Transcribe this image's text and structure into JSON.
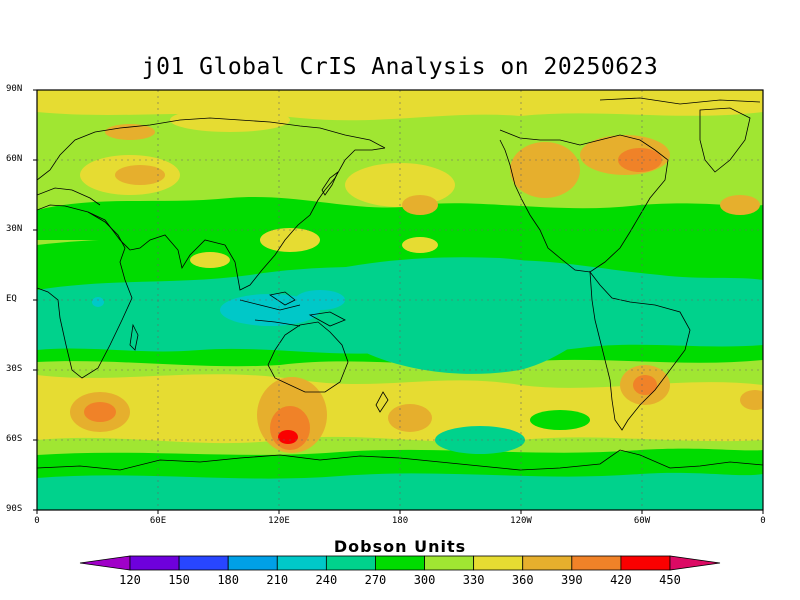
{
  "title": "j01 Global CrIS Analysis on 20250623",
  "lat_labels": [
    "90N",
    "60N",
    "30N",
    "EQ",
    "30S",
    "60S",
    "90S"
  ],
  "lon_labels": [
    "0",
    "60E",
    "120E",
    "180",
    "120W",
    "60W",
    "0"
  ],
  "colorbar": {
    "title": "Dobson Units",
    "levels": [
      "120",
      "150",
      "180",
      "210",
      "240",
      "270",
      "300",
      "330",
      "360",
      "390",
      "420",
      "450"
    ],
    "colors": [
      "#a000c8",
      "#6e00dc",
      "#2846ff",
      "#00a0e6",
      "#00c8c8",
      "#00d28c",
      "#00dc00",
      "#a0e632",
      "#e6dc32",
      "#e6af2d",
      "#f08228",
      "#fa0000",
      "#dc0a64"
    ]
  },
  "map": {
    "projection": "cylindrical equidistant",
    "lon_range": [
      0,
      360
    ],
    "lat_range": [
      -90,
      90
    ],
    "field": "total column ozone",
    "units": "Dobson Units"
  }
}
